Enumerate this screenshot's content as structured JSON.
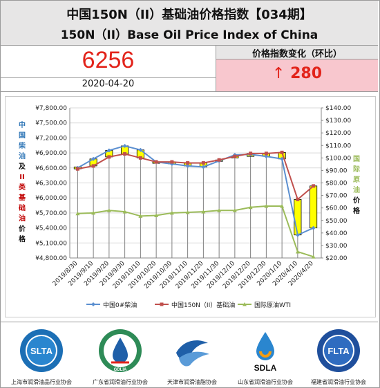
{
  "header": {
    "title_cn": "中国150N（II）基础油价格指数【034期】",
    "title_en": "150N（II）Base Oil Price Index of China"
  },
  "index": {
    "value": "6256",
    "date": "2020-04-20",
    "change_label": "价格指数变化（环比）",
    "change_arrow": "↑",
    "change_value": "280"
  },
  "chart_data": {
    "type": "line",
    "x": [
      "2019/8/30",
      "2019/9/10",
      "2019/9/20",
      "2019/9/30",
      "2019/10/10",
      "2019/10/20",
      "2019/10/30",
      "2019/11/10",
      "2019/11/20",
      "2019/11/30",
      "2019/12/10",
      "2019/12/20",
      "2019/12/30",
      "2020/1/10",
      "2020/4/10",
      "2020/4/20"
    ],
    "y_left": {
      "ticks": [
        "¥7,800.00",
        "¥7,500.00",
        "¥7,200.00",
        "¥6,900.00",
        "¥6,600.00",
        "¥6,300.00",
        "¥6,000.00",
        "¥5,700.00",
        "¥5,400.00",
        "¥5,100.00",
        "¥4,800.00"
      ],
      "range": [
        4800,
        7800
      ]
    },
    "y_right": {
      "ticks": [
        "$140.00",
        "$130.00",
        "$120.00",
        "$110.00",
        "$100.00",
        "$90.00",
        "$80.00",
        "$70.00",
        "$60.00",
        "$50.00",
        "$40.00",
        "$30.00",
        "$20.00"
      ],
      "range": [
        20,
        140
      ]
    },
    "left_axis_label": [
      "中",
      "国",
      "柴",
      "油",
      "及",
      "II",
      "类",
      "基",
      "础",
      "油",
      "价",
      "格"
    ],
    "right_axis_label": [
      "国",
      "际",
      "原",
      "油",
      "价",
      "格"
    ],
    "series": [
      {
        "name": "中国0#柴油",
        "axis": "left",
        "color": "#5b8fd0",
        "values": [
          6600,
          6780,
          6950,
          7040,
          6960,
          6720,
          6680,
          6640,
          6620,
          6740,
          6860,
          6870,
          6830,
          6780,
          5260,
          5400
        ]
      },
      {
        "name": "中国150N（II）基础油",
        "axis": "left",
        "color": "#c0504d",
        "values": [
          6580,
          6640,
          6820,
          6880,
          6800,
          6720,
          6720,
          6700,
          6700,
          6760,
          6830,
          6890,
          6890,
          6910,
          5970,
          6240
        ]
      },
      {
        "name": "国际原油WTI",
        "axis": "right",
        "color": "#9bbb59",
        "values": [
          55.5,
          56,
          58,
          57,
          53.5,
          54,
          56,
          56.5,
          57,
          58,
          58,
          60.5,
          61.5,
          61.5,
          25,
          21
        ]
      }
    ],
    "candles": [
      {
        "open": 6580,
        "close": 6620
      },
      {
        "open": 6640,
        "close": 6780
      },
      {
        "open": 6820,
        "close": 6950
      },
      {
        "open": 6880,
        "close": 7040
      },
      {
        "open": 6800,
        "close": 6960
      },
      {
        "open": 6720,
        "close": 6700
      },
      {
        "open": 6720,
        "close": 6680
      },
      {
        "open": 6700,
        "close": 6640
      },
      {
        "open": 6700,
        "close": 6620
      },
      {
        "open": 6760,
        "close": 6740
      },
      {
        "open": 6830,
        "close": 6800
      },
      {
        "open": 6890,
        "close": 6830
      },
      {
        "open": 6890,
        "close": 6830
      },
      {
        "open": 6910,
        "close": 6780
      },
      {
        "open": 5970,
        "close": 5260
      },
      {
        "open": 6240,
        "close": 5400
      }
    ],
    "candle_color": "#ffff00",
    "grid": true,
    "legend_position": "bottom"
  },
  "associations": [
    {
      "name": "上海市润滑油品行业协会",
      "badge": "SLTA",
      "icon": "slta-logo-icon"
    },
    {
      "name": "广东省润滑油行业协会",
      "badge": "GDLIA",
      "icon": "gdlia-logo-icon"
    },
    {
      "name": "天津市润滑油脂协会",
      "badge": "",
      "icon": "tianjin-logo-icon"
    },
    {
      "name": "山东省润滑油行业协会",
      "badge": "SDLA",
      "icon": "sdla-logo-icon"
    },
    {
      "name": "福建省润滑油行业协会",
      "badge": "FLTA",
      "icon": "flta-logo-icon"
    }
  ]
}
